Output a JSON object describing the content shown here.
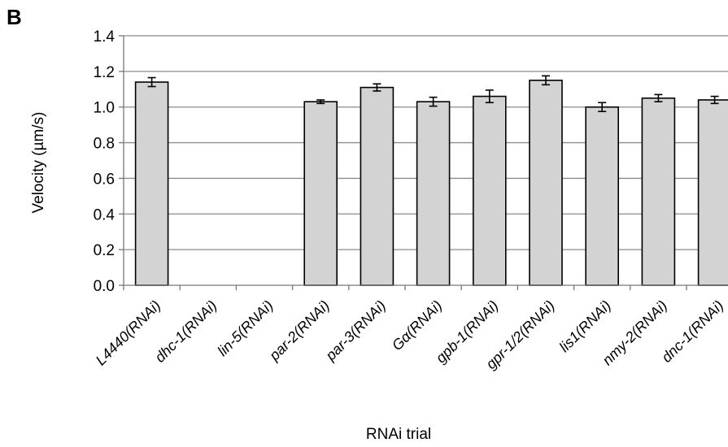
{
  "chart_data": {
    "type": "bar",
    "panel_label": "B",
    "title": "",
    "xlabel": "RNAi trial",
    "ylabel": "Velocity (µm/s)",
    "ylim": [
      0,
      1.4
    ],
    "yticks": [
      "0.0",
      "0.2",
      "0.4",
      "0.6",
      "0.8",
      "1.0",
      "1.2",
      "1.4"
    ],
    "grid": true,
    "categories": [
      "L4440(RNAi)",
      "dhc-1(RNAi)",
      "lin-5(RNAi)",
      "par-2(RNAi)",
      "par-3(RNAi)",
      "Gα(RNAi)",
      "gpb-1(RNAi)",
      "gpr-1/2(RNAi)",
      "lis1(RNAi)",
      "nmy-2(RNAi)",
      "dnc-1(RNAi)"
    ],
    "values": [
      1.14,
      null,
      null,
      1.03,
      1.11,
      1.03,
      1.06,
      1.15,
      1.0,
      1.05,
      1.04
    ],
    "errors": [
      0.025,
      null,
      null,
      0.01,
      0.02,
      0.025,
      0.035,
      0.025,
      0.025,
      0.02,
      0.02
    ],
    "bar_color": "#d3d3d3"
  }
}
